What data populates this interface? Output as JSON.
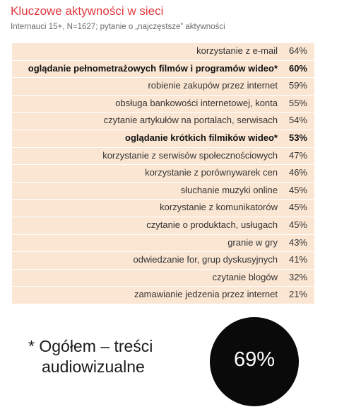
{
  "chart_data": {
    "type": "table",
    "title": "Kluczowe aktywności w sieci",
    "subtitle": "Internauci 15+, N=1627; pytanie o „najczęstsze” aktywności",
    "rows": [
      {
        "label": "korzystanie z e-mail",
        "value": "64%",
        "bold": false
      },
      {
        "label": "oglądanie pełnometrażowych filmów i programów wideo*",
        "value": "60%",
        "bold": true
      },
      {
        "label": "robienie zakupów przez internet",
        "value": "59%",
        "bold": false
      },
      {
        "label": "obsługa bankowości internetowej, konta",
        "value": "55%",
        "bold": false
      },
      {
        "label": "czytanie artykułów na portalach, serwisach",
        "value": "54%",
        "bold": false
      },
      {
        "label": "oglądanie krótkich filmików wideo*",
        "value": "53%",
        "bold": true
      },
      {
        "label": "korzystanie z serwisów społecznościowych",
        "value": "47%",
        "bold": false
      },
      {
        "label": "korzystanie z porównywarek cen",
        "value": "46%",
        "bold": false
      },
      {
        "label": "słuchanie muzyki online",
        "value": "45%",
        "bold": false
      },
      {
        "label": "korzystanie z komunikatorów",
        "value": "45%",
        "bold": false
      },
      {
        "label": "czytanie o produktach, usługach",
        "value": "45%",
        "bold": false
      },
      {
        "label": "granie w gry",
        "value": "43%",
        "bold": false
      },
      {
        "label": "odwiedzanie for, grup dyskusyjnych",
        "value": "41%",
        "bold": false
      },
      {
        "label": "czytanie blogów",
        "value": "32%",
        "bold": false
      },
      {
        "label": "zamawianie jedzenia przez internet",
        "value": "21%",
        "bold": false
      }
    ]
  },
  "summary": {
    "line1": "* Ogółem – treści",
    "line2": "audiowizualne",
    "value": "69%"
  },
  "colors": {
    "title": "#e0393e",
    "panel": "#fbe6d3",
    "circle": "#0a0a0a"
  }
}
